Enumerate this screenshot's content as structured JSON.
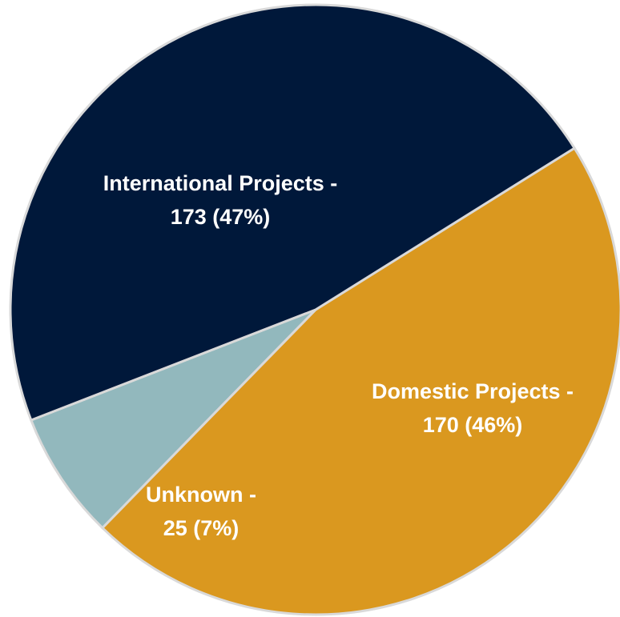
{
  "chart_data": {
    "type": "pie",
    "title": "",
    "start_angle_deg": 58,
    "direction": "clockwise",
    "slices": [
      {
        "label": "Domestic Projects",
        "value": 170,
        "percent": "46%",
        "color": "#DA981F",
        "label_line1": "Domestic Projects -",
        "label_line2": "170 (46%)"
      },
      {
        "label": "Unknown",
        "value": 25,
        "percent": "7%",
        "color": "#92B8BD",
        "label_line1": "Unknown -",
        "label_line2": "25 (7%)"
      },
      {
        "label": "International Projects",
        "value": 173,
        "percent": "47%",
        "color": "#00183A",
        "label_line1": "International Projects -",
        "label_line2": "173 (47%)"
      }
    ],
    "legend": "none",
    "border_color": "#D9D9D9",
    "label_color": "#FFFFFF"
  }
}
